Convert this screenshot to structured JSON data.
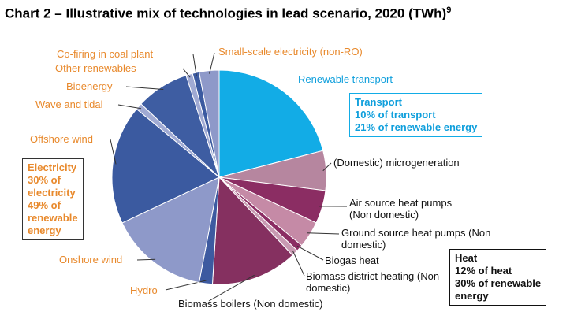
{
  "chart_data": {
    "type": "pie",
    "title": "Chart 2 – Illustrative mix of technologies in lead scenario, 2020 (TWh)",
    "title_note": "9",
    "categories": [
      "Renewable transport",
      "(Domestic) microgeneration",
      "Air source heat pumps (Non domestic)",
      "Ground source heat pumps (Non domestic)",
      "Biogas heat",
      "Biomass district heating (Non domestic)",
      "Biomass boilers (Non domestic)",
      "Hydro",
      "Onshore wind",
      "Offshore wind",
      "Wave and tidal",
      "Bioenergy",
      "Other renewables",
      "Co-firing in coal plant",
      "Small-scale electricity (non-RO)"
    ],
    "values": [
      21,
      6,
      5,
      4,
      1,
      1,
      13,
      2,
      15,
      18,
      1,
      8,
      1,
      1,
      3
    ],
    "colors": [
      "#12ace6",
      "#b6869f",
      "#8b2d63",
      "#c58aa6",
      "#8b2d63",
      "#c89ab2",
      "#853060",
      "#3d5aa0",
      "#8e99c9",
      "#3b5aa0",
      "#a0aad3",
      "#3e5da2",
      "#a0aad3",
      "#3b5aa0",
      "#8e99c9"
    ],
    "label_colors": [
      "#0f9fdc",
      "#111",
      "#111",
      "#111",
      "#111",
      "#111",
      "#111",
      "#e8892c",
      "#e8892c",
      "#e8892c",
      "#e8892c",
      "#e8892c",
      "#e8892c",
      "#e8892c",
      "#e8892c"
    ],
    "callouts": [
      {
        "lines": [
          "Transport",
          "10% of transport",
          "21% of renewable energy"
        ],
        "color": "#0f9fdc",
        "border": "#12ace6"
      },
      {
        "lines": [
          "Electricity",
          "30% of",
          "electricity",
          "49% of",
          "renewable",
          "energy"
        ],
        "color": "#e8892c",
        "border": "#333"
      },
      {
        "lines": [
          "Heat",
          "12% of heat",
          "30% of renewable",
          "energy"
        ],
        "color": "#111",
        "border": "#111"
      }
    ]
  }
}
